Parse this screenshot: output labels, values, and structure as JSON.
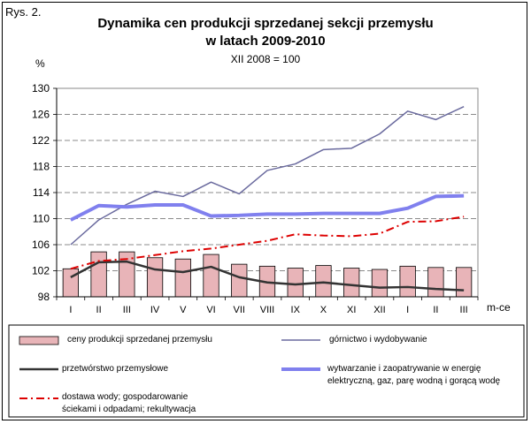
{
  "figure_label": "Rys. 2.",
  "chart_data": {
    "type": "line",
    "title_line1": "Dynamika cen produkcji sprzedanej sekcji przemysłu",
    "title_line2": "w latach 2009-2010",
    "subtitle": "XII 2008 = 100",
    "ylabel": "%",
    "xlabel": "m-ce",
    "categories": [
      "I",
      "II",
      "III",
      "IV",
      "V",
      "VI",
      "VII",
      "VIII",
      "IX",
      "X",
      "XI",
      "XII",
      "I",
      "II",
      "III"
    ],
    "ylim": [
      98,
      130
    ],
    "yticks": [
      98,
      102,
      106,
      110,
      114,
      118,
      122,
      126,
      130
    ],
    "grid": "horizontal-dashed",
    "series": [
      {
        "name": "ceny produkcji sprzedanej przemysłu",
        "kind": "bar",
        "color": "#e8b4b8",
        "values": [
          102.3,
          104.9,
          104.9,
          104.0,
          103.8,
          104.5,
          103.0,
          102.7,
          102.4,
          102.8,
          102.4,
          102.2,
          102.7,
          102.5,
          102.5
        ]
      },
      {
        "name": "górnictwo i wydobywanie",
        "kind": "line",
        "color": "#6a6a9e",
        "values": [
          106.0,
          109.8,
          112.2,
          114.2,
          113.4,
          115.6,
          113.8,
          117.4,
          118.4,
          120.6,
          120.8,
          123.0,
          126.5,
          125.2,
          127.2
        ]
      },
      {
        "name": "przetwórstwo przemysłowe",
        "kind": "line",
        "color": "#333333",
        "values": [
          101.0,
          103.3,
          103.4,
          102.2,
          101.8,
          102.6,
          101.0,
          100.2,
          99.9,
          100.2,
          99.8,
          99.4,
          99.5,
          99.2,
          99.0
        ]
      },
      {
        "name": "wytwarzanie i zaopatrywanie w energię elektryczną, gaz, parę wodną i gorącą wodę",
        "kind": "line",
        "color": "#8080ee",
        "values": [
          109.8,
          112.0,
          111.8,
          112.1,
          112.1,
          110.4,
          110.5,
          110.7,
          110.7,
          110.8,
          110.8,
          110.8,
          111.6,
          113.4,
          113.5
        ]
      },
      {
        "name": "dostawa wody; gospodarowanie ściekami i odpadami; rekultywacja",
        "kind": "line-dashdot",
        "color": "#dd0000",
        "values": [
          102.3,
          103.5,
          103.8,
          104.4,
          105.0,
          105.4,
          106.0,
          106.6,
          107.6,
          107.4,
          107.3,
          107.7,
          109.5,
          109.6,
          110.3
        ]
      }
    ]
  },
  "legend": {
    "bar": "ceny produkcji sprzedanej przemysłu",
    "mining": "górnictwo i wydobywanie",
    "manufacturing": "przetwórstwo przemysłowe",
    "energy_line1": "wytwarzanie i zaopatrywanie w energię",
    "energy_line2": "elektryczną, gaz, parę wodną i gorącą wodę",
    "water_line1": "dostawa wody; gospodarowanie",
    "water_line2": "ściekami i odpadami; rekultywacja"
  }
}
